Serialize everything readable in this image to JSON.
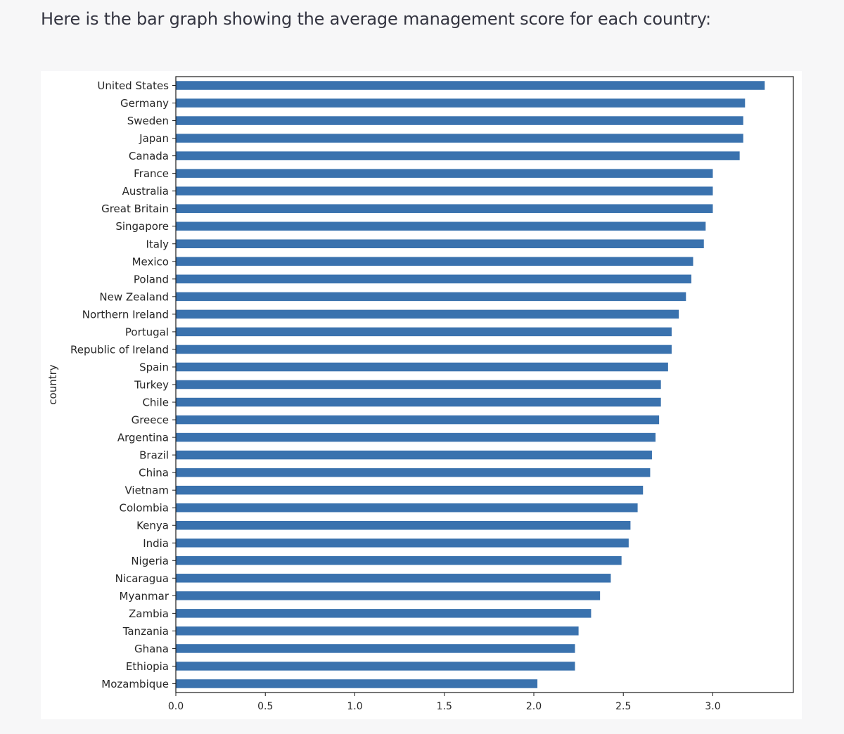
{
  "message": {
    "text": "Here is the bar graph showing the average management score for each country:"
  },
  "chart_data": {
    "type": "bar",
    "orientation": "horizontal",
    "title": "",
    "xlabel": "",
    "ylabel": "country",
    "xlim": [
      0,
      3.45
    ],
    "xticks": [
      "0.0",
      "0.5",
      "1.0",
      "1.5",
      "2.0",
      "2.5",
      "3.0"
    ],
    "grid": false,
    "legend": "none",
    "bar_color": "#3a72ae",
    "categories": [
      "United States",
      "Germany",
      "Sweden",
      "Japan",
      "Canada",
      "France",
      "Australia",
      "Great Britain",
      "Singapore",
      "Italy",
      "Mexico",
      "Poland",
      "New Zealand",
      "Northern Ireland",
      "Portugal",
      "Republic of Ireland",
      "Spain",
      "Turkey",
      "Chile",
      "Greece",
      "Argentina",
      "Brazil",
      "China",
      "Vietnam",
      "Colombia",
      "Kenya",
      "India",
      "Nigeria",
      "Nicaragua",
      "Myanmar",
      "Zambia",
      "Tanzania",
      "Ghana",
      "Ethiopia",
      "Mozambique"
    ],
    "values": [
      3.29,
      3.18,
      3.17,
      3.17,
      3.15,
      3.0,
      3.0,
      3.0,
      2.96,
      2.95,
      2.89,
      2.88,
      2.85,
      2.81,
      2.77,
      2.77,
      2.75,
      2.71,
      2.71,
      2.7,
      2.68,
      2.66,
      2.65,
      2.61,
      2.58,
      2.54,
      2.53,
      2.49,
      2.43,
      2.37,
      2.32,
      2.25,
      2.23,
      2.23,
      2.02
    ]
  }
}
